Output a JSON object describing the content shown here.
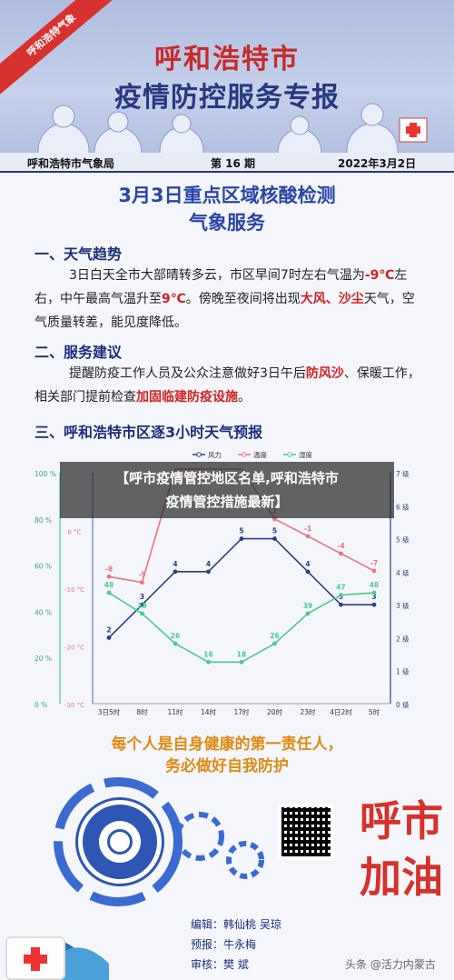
{
  "header": {
    "ribbon": "呼和浩特气象",
    "city": "呼和浩特市",
    "title": "疫情防控服务专报",
    "bureau": "呼和浩特市气象局",
    "issue": "第 16 期",
    "date": "2022年3月2日"
  },
  "doc": {
    "title_line1": "3月3日重点区域核酸检测",
    "title_line2": "气象服务"
  },
  "sections": {
    "s1": "一、天气趋势",
    "s1_parts": [
      "3日白天全市大部晴转多云，市区早间7时左右气温为",
      "-9℃",
      "左右，中午最高气温升至",
      "9℃",
      "。傍晚至夜间将出现",
      "大风、沙尘",
      "天气，空气质量转差，能见度降低。"
    ],
    "s2": "二、服务建议",
    "s2_parts": [
      "提醒防疫工作人员及公众注意做好3日午后",
      "防风沙",
      "、保暖工作，相关部门提前检查",
      "加固临建防疫设施",
      "。"
    ],
    "s3": "三、呼和浩特市区逐3小时天气预报"
  },
  "overlay": {
    "line1": "【呼市疫情管控地区名单,呼和浩特市",
    "line2": "疫情管控措施最新】"
  },
  "chart_data": {
    "type": "line",
    "x": [
      "3日5时",
      "8时",
      "11时",
      "14时",
      "17时",
      "20时",
      "23时",
      "4日2时",
      "5时"
    ],
    "legend": [
      "风力",
      "温度",
      "湿度"
    ],
    "legend_position": "top",
    "series": [
      {
        "name": "风力",
        "color": "#2b3f85",
        "axis": "right_wind",
        "values": [
          2,
          3,
          4,
          4,
          5,
          5,
          4,
          3,
          3
        ]
      },
      {
        "name": "温度",
        "color": "#e9747c",
        "axis": "left_temp",
        "values": [
          -8,
          -9,
          null,
          null,
          null,
          2,
          -1,
          -4,
          -7
        ]
      },
      {
        "name": "湿度",
        "color": "#4cc98d",
        "axis": "left_humidity",
        "values": [
          48,
          39,
          26,
          18,
          18,
          26,
          39,
          47,
          48
        ]
      }
    ],
    "left_humidity_ticks": [
      "100 %",
      "80 %",
      "60 %",
      "40 %",
      "20 %",
      "0 %"
    ],
    "left_humidity_range": [
      0,
      100
    ],
    "left_temp_ticks": [
      "0 °C",
      "-10 °C",
      "-20 °C",
      "-30 °C"
    ],
    "left_temp_range": [
      -30,
      10
    ],
    "right_wind_ticks": [
      "7 级",
      "6 级",
      "5 级",
      "4 级",
      "3 级",
      "2 级",
      "1 级",
      "0 级"
    ],
    "right_wind_range": [
      0,
      7
    ]
  },
  "slogan": {
    "line1": "每个人是自身健康的第一责任人，",
    "line2": "务必做好自我防护"
  },
  "calligraphy": "呼市加油",
  "credits": [
    {
      "k": "编辑：",
      "v": "韩仙桃  吴琼"
    },
    {
      "k": "预报：",
      "v": "牛永梅"
    },
    {
      "k": "审核：",
      "v": "樊  斌"
    }
  ],
  "watermark": "头条 @活力内蒙古",
  "colors": {
    "brand_blue": "#27397e",
    "accent_red": "#d42020",
    "slogan_orange": "#e08a14"
  }
}
